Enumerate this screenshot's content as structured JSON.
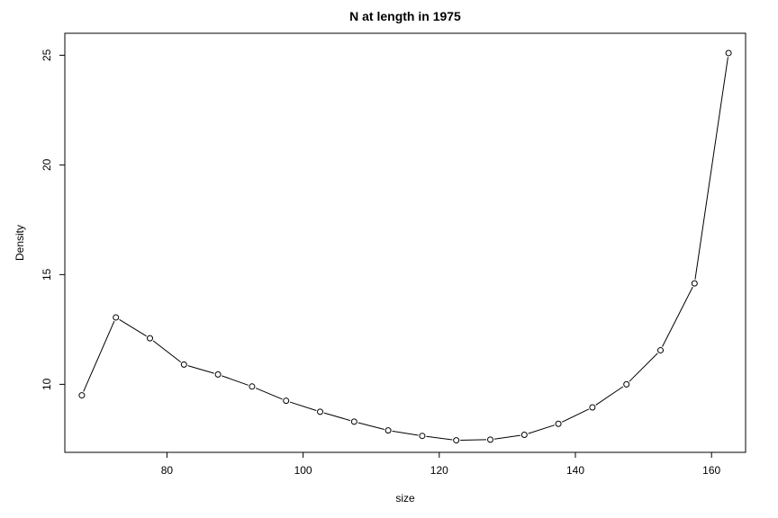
{
  "chart_data": {
    "type": "line",
    "title": "N at length in 1975",
    "xlabel": "size",
    "ylabel": "Density",
    "markers": "open-circle",
    "grid": false,
    "legend": "none",
    "xlim": [
      65,
      165
    ],
    "ylim": [
      6.9,
      26.0
    ],
    "xticks": [
      80,
      100,
      120,
      140,
      160
    ],
    "yticks": [
      10,
      15,
      20,
      25
    ],
    "x": [
      67.5,
      72.5,
      77.5,
      82.5,
      87.5,
      92.5,
      97.5,
      102.5,
      107.5,
      112.5,
      117.5,
      122.5,
      127.5,
      132.5,
      137.5,
      142.5,
      147.5,
      152.5,
      157.5,
      162.5
    ],
    "y": [
      9.5,
      13.05,
      12.1,
      10.9,
      10.45,
      9.9,
      9.25,
      8.75,
      8.3,
      7.9,
      7.65,
      7.45,
      7.48,
      7.7,
      8.2,
      8.95,
      10.0,
      11.55,
      14.6,
      25.1
    ],
    "color": "#000000"
  }
}
